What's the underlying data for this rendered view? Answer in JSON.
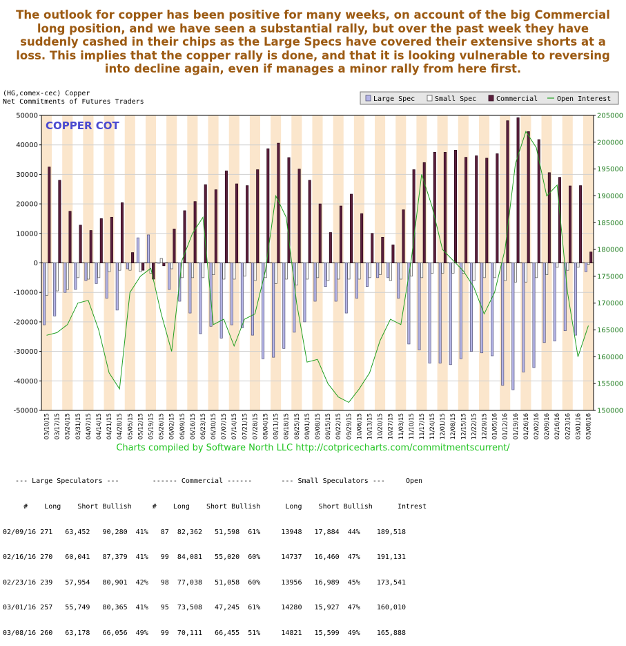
{
  "headline": "The outlook for copper has been positive for many weeks, on account of the big Commercial long position, and we have seen a substantial rally, but over the past week they have suddenly cashed in their chips as the Large Specs have covered their extensive shorts at a loss. This implies that the copper rally is done, and that it is looking vulnerable to reversing into decline again, even if manages a minor rally from here first.",
  "chart_header": {
    "symbol_line": "(HG,comex-cec) Copper",
    "subtitle_line": "Net Commitments of Futures Traders"
  },
  "chart_data": {
    "type": "bar",
    "title": "COPPER COT",
    "categories": [
      "03/10/15",
      "03/17/15",
      "03/24/15",
      "03/31/15",
      "04/07/15",
      "04/14/15",
      "04/21/15",
      "04/28/15",
      "05/05/15",
      "05/12/15",
      "05/19/15",
      "05/26/15",
      "06/02/15",
      "06/09/15",
      "06/16/15",
      "06/23/15",
      "06/30/15",
      "07/07/15",
      "07/14/15",
      "07/21/15",
      "07/28/15",
      "08/04/15",
      "08/11/15",
      "08/18/15",
      "08/25/15",
      "09/01/15",
      "09/08/15",
      "09/15/15",
      "09/22/15",
      "09/29/15",
      "10/06/15",
      "10/13/15",
      "10/20/15",
      "10/27/15",
      "11/03/15",
      "11/10/15",
      "11/17/15",
      "11/24/15",
      "12/01/15",
      "12/08/15",
      "12/15/15",
      "12/22/15",
      "12/29/15",
      "01/05/16",
      "01/12/16",
      "01/19/16",
      "01/26/16",
      "02/02/16",
      "02/09/16",
      "02/16/16",
      "02/23/16",
      "03/01/16",
      "03/08/16"
    ],
    "series": [
      {
        "name": "Large Spec",
        "color": "#b4b4e6",
        "values": [
          -21000,
          -18000,
          -10000,
          -9000,
          -6000,
          -7000,
          -12000,
          -16000,
          -2000,
          8500,
          9500,
          0,
          -9000,
          -13000,
          -17000,
          -24000,
          -21500,
          -25500,
          -21000,
          -22000,
          -24500,
          -32500,
          -32000,
          -29000,
          -23500,
          -20000,
          -13000,
          -8000,
          -13000,
          -17000,
          -12000,
          -8000,
          -5000,
          -5000,
          -12000,
          -27500,
          -29500,
          -34000,
          -34000,
          -34500,
          -32500,
          -30000,
          -30500,
          -31500,
          -41500,
          -43000,
          -37000,
          -35500,
          -27000,
          -26500,
          -23000,
          -24500,
          -3000
        ]
      },
      {
        "name": "Small Spec",
        "color": "#ffffff",
        "values": [
          -11000,
          -9500,
          -9000,
          -5000,
          -5500,
          -5000,
          -3000,
          -2500,
          -2500,
          -3000,
          -3500,
          1500,
          -2000,
          -5000,
          -5000,
          -5000,
          -4000,
          -5500,
          -5500,
          -4500,
          -6000,
          -5000,
          -7000,
          -5500,
          -7500,
          -5500,
          -5000,
          -6000,
          -5500,
          -5500,
          -5500,
          -5000,
          -4000,
          -6000,
          -5500,
          -4500,
          -5000,
          -3500,
          -3500,
          -3500,
          -3500,
          -6000,
          -5000,
          -5000,
          -6000,
          -6500,
          -6500,
          -5000,
          -4000,
          -1500,
          -2500,
          -1500,
          -500
        ]
      },
      {
        "name": "Commercial",
        "color": "#5a1e3c",
        "values": [
          32500,
          28000,
          17500,
          12800,
          11000,
          15000,
          15500,
          20400,
          3500,
          -2500,
          -5500,
          -1000,
          11500,
          17700,
          20800,
          26500,
          24800,
          31200,
          26800,
          26200,
          31600,
          38700,
          40600,
          35700,
          31800,
          28000,
          20000,
          10300,
          19300,
          23300,
          16700,
          10000,
          8700,
          6100,
          18000,
          31600,
          34000,
          37500,
          37500,
          38200,
          35800,
          36300,
          35500,
          37000,
          48200,
          49200,
          44500,
          41800,
          30600,
          29000,
          26100,
          26200,
          3700
        ]
      },
      {
        "name": "Open Interest",
        "color": "#22a022",
        "values": [
          164000,
          164500,
          166000,
          170000,
          170500,
          165000,
          157000,
          154000,
          172000,
          175000,
          176500,
          168000,
          161000,
          178000,
          183000,
          186000,
          166000,
          167000,
          162000,
          167000,
          168000,
          176000,
          190000,
          186000,
          170000,
          159000,
          159500,
          155000,
          152500,
          151500,
          154000,
          157000,
          163000,
          167000,
          166000,
          178000,
          194000,
          188000,
          180000,
          178000,
          176000,
          173000,
          168000,
          172000,
          180000,
          196000,
          202000,
          199000,
          190000,
          192000,
          172000,
          160000,
          165800
        ]
      }
    ],
    "y_left": [
      -50000,
      50000
    ],
    "y_right": [
      150000,
      205000
    ],
    "y_left_ticks": [
      "50000",
      "40000",
      "30000",
      "20000",
      "10000",
      "0",
      "-10000",
      "-20000",
      "-30000",
      "-40000",
      "-50000"
    ],
    "y_right_ticks": [
      "205000",
      "200000",
      "195000",
      "190000",
      "185000",
      "180000",
      "175000",
      "170000",
      "165000",
      "160000",
      "155000",
      "150000"
    ],
    "legend": [
      "Large Spec",
      "Small Spec",
      "Commercial",
      "Open Interest"
    ],
    "legend_placement": "top-right",
    "credit": "Charts compiled by Software North LLC  http://cotpricecharts.com/commitmentscurrent/"
  },
  "stats": {
    "lines": [
      "   --- Large Speculators ---        ------ Commercial ------       --- Small Speculators ---     Open",
      "     #    Long    Short Bullish     #    Long    Short Bullish      Long    Short Bullish      Intrest",
      "02/09/16 271   63,452   90,280  41%   87  82,362   51,598  61%     13948   17,884  44%    189,518",
      "02/16/16 270   60,041   87,379  41%   99  84,081   55,020  60%     14737   16,460  47%    191,131",
      "02/23/16 239   57,954   80,901  42%   98  77,038   51,058  60%     13956   16,989  45%    173,541",
      "03/01/16 257   55,749   80,365  41%   95  73,508   47,245  61%     14280   15,927  47%    160,010",
      "03/08/16 260   63,178   66,056  49%   99  70,111   66,455  51%     14821   15,599  49%    165,888"
    ]
  }
}
